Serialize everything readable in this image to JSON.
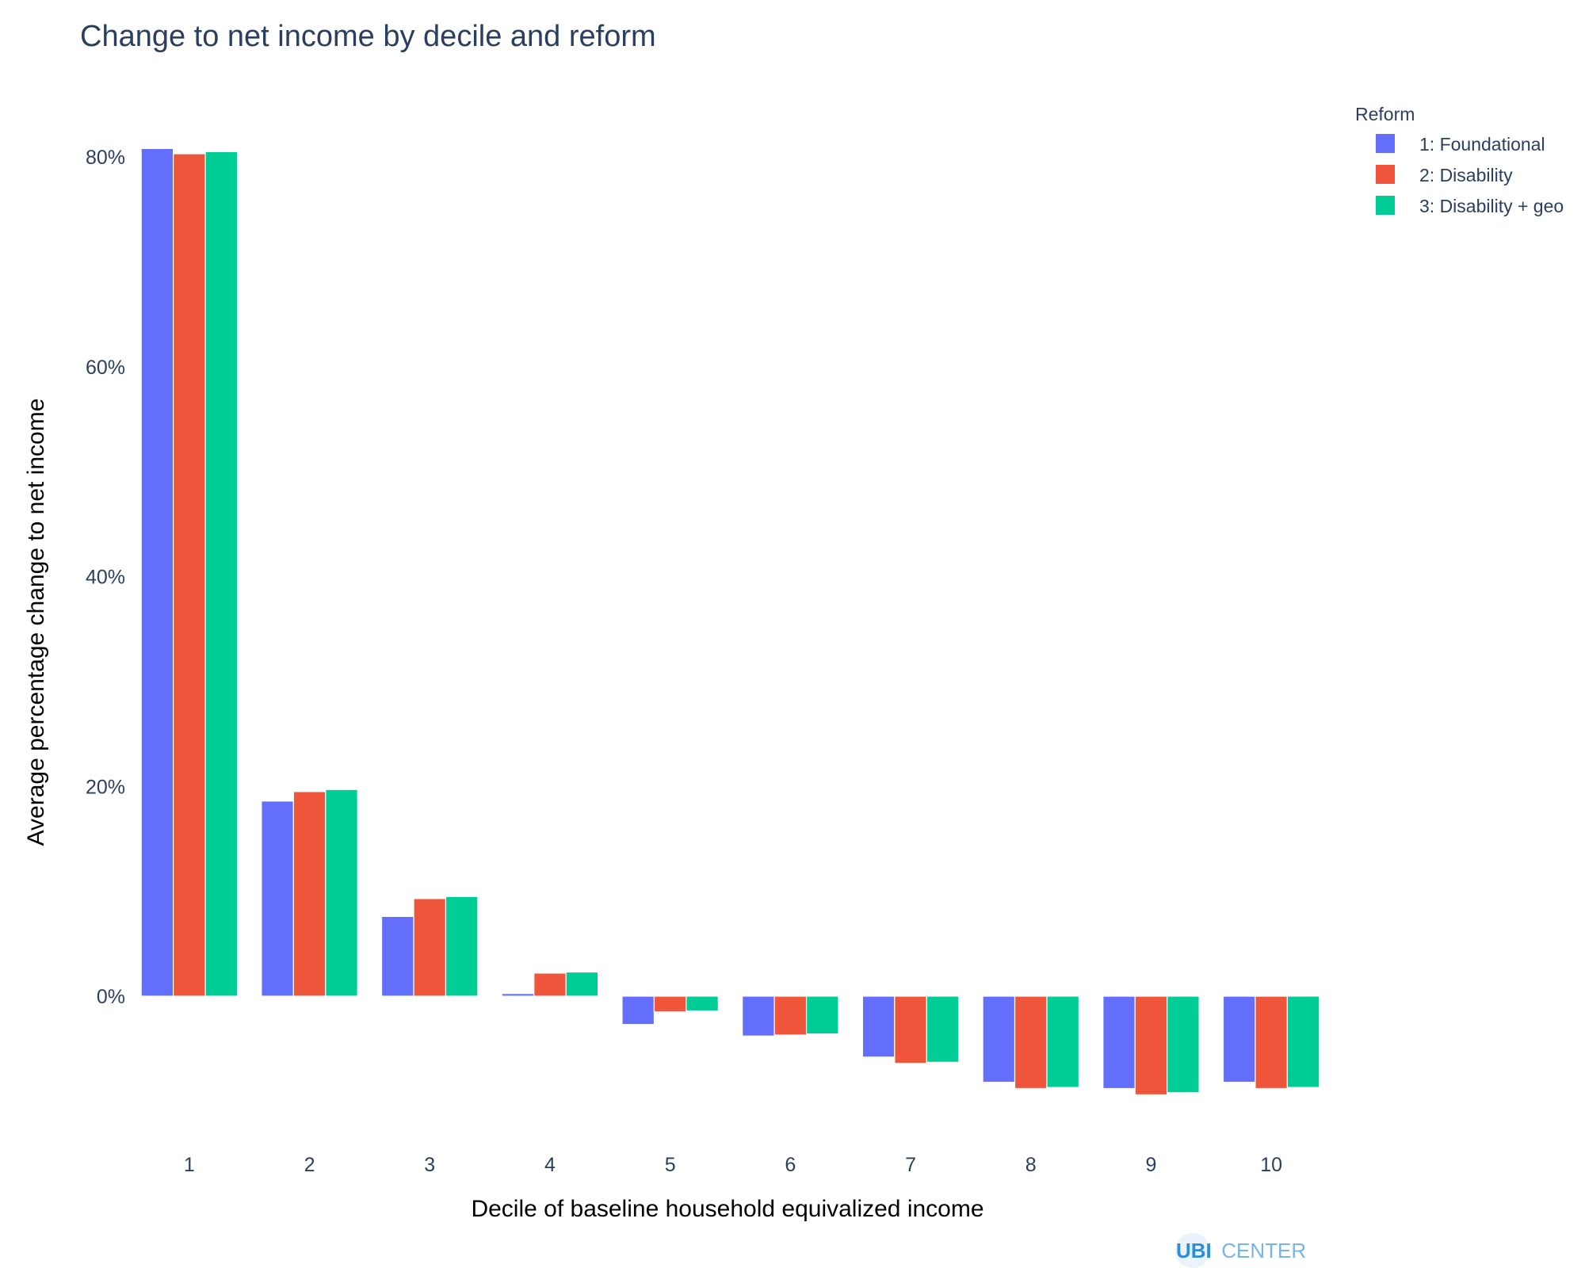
{
  "chart_data": {
    "type": "bar",
    "title": "Change to net income by decile and reform",
    "xlabel": "Decile of baseline household equivalized income",
    "ylabel": "Average percentage change to net income",
    "categories": [
      "1",
      "2",
      "3",
      "4",
      "5",
      "6",
      "7",
      "8",
      "9",
      "10"
    ],
    "y_ticks": [
      0,
      20,
      40,
      60,
      80
    ],
    "y_tick_labels": [
      "0%",
      "20%",
      "40%",
      "60%",
      "80%"
    ],
    "ylim": [
      -13.5,
      87
    ],
    "grid": false,
    "legend_title": "Reform",
    "legend_position": "top-right",
    "series": [
      {
        "name": "1: Foundational",
        "color": "#636efa",
        "values": [
          80.8,
          18.6,
          7.6,
          0.25,
          -2.7,
          -3.8,
          -5.8,
          -8.2,
          -8.8,
          -8.2
        ]
      },
      {
        "name": "2: Disability",
        "color": "#ef553b",
        "values": [
          80.3,
          19.5,
          9.3,
          2.2,
          -1.5,
          -3.7,
          -6.4,
          -8.8,
          -9.4,
          -8.8
        ]
      },
      {
        "name": "3: Disability + geo",
        "color": "#00cc96",
        "values": [
          80.5,
          19.7,
          9.5,
          2.3,
          -1.4,
          -3.6,
          -6.3,
          -8.7,
          -9.2,
          -8.7
        ]
      }
    ]
  },
  "logo": {
    "bold": "UBI",
    "light": "CENTER"
  }
}
